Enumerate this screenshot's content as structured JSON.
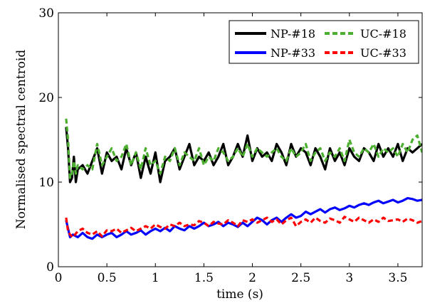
{
  "chart_data": {
    "type": "line",
    "title": "",
    "xlabel": "time (s)",
    "ylabel": "Normalised spectral centroid",
    "xlim": [
      0,
      3.75
    ],
    "ylim": [
      0,
      30
    ],
    "x_ticks": [
      0,
      0.5,
      1,
      1.5,
      2,
      2.5,
      3,
      3.5
    ],
    "x_tick_labels": [
      "0",
      "0.5",
      "1",
      "1.5",
      "2",
      "2.5",
      "3",
      "3.5"
    ],
    "y_ticks": [
      0,
      10,
      20,
      30
    ],
    "y_tick_labels": [
      "0",
      "10",
      "20",
      "30"
    ],
    "grid": false,
    "legend_position": "top-right",
    "legend_columns": 2,
    "series": [
      {
        "name": "NP-#18",
        "color": "#000000",
        "style": "solid",
        "x": [
          0.08,
          0.1,
          0.12,
          0.14,
          0.16,
          0.18,
          0.2,
          0.25,
          0.3,
          0.35,
          0.4,
          0.45,
          0.5,
          0.55,
          0.6,
          0.65,
          0.7,
          0.75,
          0.8,
          0.85,
          0.9,
          0.95,
          1.0,
          1.05,
          1.1,
          1.15,
          1.2,
          1.25,
          1.3,
          1.35,
          1.4,
          1.45,
          1.5,
          1.55,
          1.6,
          1.65,
          1.7,
          1.75,
          1.8,
          1.85,
          1.9,
          1.95,
          2.0,
          2.05,
          2.1,
          2.15,
          2.2,
          2.25,
          2.3,
          2.35,
          2.4,
          2.45,
          2.5,
          2.55,
          2.6,
          2.65,
          2.7,
          2.75,
          2.8,
          2.85,
          2.9,
          2.95,
          3.0,
          3.05,
          3.1,
          3.15,
          3.2,
          3.25,
          3.3,
          3.35,
          3.4,
          3.45,
          3.5,
          3.55,
          3.6,
          3.65,
          3.7,
          3.75
        ],
        "y": [
          16.5,
          14,
          10,
          10.5,
          13,
          10,
          11.5,
          12,
          11,
          12.5,
          14,
          11,
          13.5,
          12.5,
          13,
          11.5,
          14,
          12,
          13.5,
          10.5,
          13,
          11,
          13.5,
          10,
          12.5,
          13,
          14,
          11.5,
          13,
          14.5,
          12,
          13,
          12.5,
          13.5,
          12,
          13,
          14.5,
          12,
          13,
          14.5,
          13,
          15.5,
          12.5,
          14,
          13,
          13.5,
          12.5,
          14.5,
          13.5,
          12,
          14.5,
          13,
          14,
          13.5,
          12,
          14,
          13,
          11.5,
          14,
          12.5,
          13.5,
          12,
          14,
          13,
          12.5,
          14,
          13.5,
          12.5,
          14.5,
          13,
          14,
          13,
          14.5,
          12.5,
          14,
          13.5,
          14,
          14.5
        ]
      },
      {
        "name": "UC-#18",
        "color": "#4daf2f",
        "style": "dashed",
        "x": [
          0.08,
          0.1,
          0.12,
          0.14,
          0.16,
          0.18,
          0.2,
          0.25,
          0.3,
          0.35,
          0.4,
          0.45,
          0.5,
          0.55,
          0.6,
          0.65,
          0.7,
          0.75,
          0.8,
          0.85,
          0.9,
          0.95,
          1.0,
          1.05,
          1.1,
          1.15,
          1.2,
          1.25,
          1.3,
          1.35,
          1.4,
          1.45,
          1.5,
          1.55,
          1.6,
          1.65,
          1.7,
          1.75,
          1.8,
          1.85,
          1.9,
          1.95,
          2.0,
          2.05,
          2.1,
          2.15,
          2.2,
          2.25,
          2.3,
          2.35,
          2.4,
          2.45,
          2.5,
          2.55,
          2.6,
          2.65,
          2.7,
          2.75,
          2.8,
          2.85,
          2.9,
          2.95,
          3.0,
          3.05,
          3.1,
          3.15,
          3.2,
          3.25,
          3.3,
          3.35,
          3.4,
          3.45,
          3.5,
          3.55,
          3.6,
          3.65,
          3.7,
          3.75
        ],
        "y": [
          17.5,
          15,
          10.5,
          11,
          12.5,
          11,
          12,
          11.5,
          12,
          11.5,
          14.5,
          12,
          13,
          14,
          12.5,
          13,
          14.5,
          12,
          13.5,
          11.5,
          14,
          12,
          12.5,
          11,
          13,
          12.5,
          14,
          12,
          13.5,
          13,
          12.5,
          14,
          12,
          13,
          12.5,
          14,
          13.5,
          12.5,
          13,
          14,
          13,
          14.5,
          13,
          14,
          13.5,
          13,
          13.5,
          14,
          13,
          12.5,
          14,
          13,
          13.5,
          14.5,
          12.5,
          13.5,
          14,
          12.5,
          13.5,
          13,
          14,
          12.5,
          15,
          13.5,
          13,
          14,
          13.5,
          14.5,
          13,
          14,
          13.5,
          14,
          13,
          14.5,
          13.5,
          15,
          15.5,
          13.5
        ]
      },
      {
        "name": "NP-#33",
        "color": "#0000ff",
        "style": "solid",
        "x": [
          0.08,
          0.1,
          0.12,
          0.15,
          0.2,
          0.25,
          0.3,
          0.35,
          0.4,
          0.45,
          0.5,
          0.55,
          0.6,
          0.65,
          0.7,
          0.75,
          0.8,
          0.85,
          0.9,
          0.95,
          1.0,
          1.05,
          1.1,
          1.15,
          1.2,
          1.25,
          1.3,
          1.35,
          1.4,
          1.45,
          1.5,
          1.55,
          1.6,
          1.65,
          1.7,
          1.75,
          1.8,
          1.85,
          1.9,
          1.95,
          2.0,
          2.05,
          2.1,
          2.15,
          2.2,
          2.25,
          2.3,
          2.35,
          2.4,
          2.45,
          2.5,
          2.55,
          2.6,
          2.65,
          2.7,
          2.75,
          2.8,
          2.85,
          2.9,
          2.95,
          3.0,
          3.05,
          3.1,
          3.15,
          3.2,
          3.25,
          3.3,
          3.35,
          3.4,
          3.45,
          3.5,
          3.55,
          3.6,
          3.65,
          3.7,
          3.75
        ],
        "y": [
          5.5,
          4.5,
          3.5,
          3.8,
          3.5,
          4,
          3.5,
          3.3,
          3.8,
          3.5,
          3.8,
          4,
          3.5,
          3.8,
          4.2,
          3.8,
          4,
          4.3,
          3.8,
          4.2,
          4.5,
          4.2,
          4.6,
          4.2,
          4.8,
          4.5,
          4.3,
          4.8,
          4.5,
          4.8,
          5.2,
          4.8,
          5,
          5.3,
          4.8,
          5.2,
          5,
          4.7,
          5.2,
          4.8,
          5.3,
          5.8,
          5.5,
          5,
          5.5,
          5.8,
          5.3,
          5.8,
          6.2,
          5.8,
          6,
          6.5,
          6.2,
          6.5,
          6.8,
          6.4,
          6.8,
          7,
          6.7,
          6.9,
          7.2,
          7,
          7.3,
          7.5,
          7.3,
          7.6,
          7.8,
          7.5,
          7.7,
          7.9,
          7.6,
          7.8,
          8.1,
          8,
          7.8,
          7.9
        ]
      },
      {
        "name": "UC-#33",
        "color": "#ff0000",
        "style": "dashed",
        "x": [
          0.08,
          0.1,
          0.12,
          0.15,
          0.2,
          0.25,
          0.3,
          0.35,
          0.4,
          0.45,
          0.5,
          0.55,
          0.6,
          0.65,
          0.7,
          0.75,
          0.8,
          0.85,
          0.9,
          0.95,
          1.0,
          1.05,
          1.1,
          1.15,
          1.2,
          1.25,
          1.3,
          1.35,
          1.4,
          1.45,
          1.5,
          1.55,
          1.6,
          1.65,
          1.7,
          1.75,
          1.8,
          1.85,
          1.9,
          1.95,
          2.0,
          2.05,
          2.1,
          2.15,
          2.2,
          2.25,
          2.3,
          2.35,
          2.4,
          2.45,
          2.5,
          2.55,
          2.6,
          2.65,
          2.7,
          2.75,
          2.8,
          2.85,
          2.9,
          2.95,
          3.0,
          3.05,
          3.1,
          3.15,
          3.2,
          3.25,
          3.3,
          3.35,
          3.4,
          3.45,
          3.5,
          3.55,
          3.6,
          3.65,
          3.7,
          3.75
        ],
        "y": [
          5.8,
          4.2,
          3.8,
          3.5,
          4.2,
          4.5,
          4,
          3.8,
          4.2,
          3.6,
          4.3,
          4.2,
          4.5,
          4,
          4.3,
          4.6,
          4.2,
          4.5,
          4.8,
          4.5,
          5,
          4.7,
          4.5,
          5,
          4.8,
          5.2,
          4.8,
          5,
          4.9,
          5.4,
          5.2,
          4.8,
          5.3,
          5.1,
          5,
          5.5,
          5.2,
          4.8,
          5.5,
          5.3,
          5.6,
          5.2,
          5.5,
          5.8,
          5.3,
          5.6,
          5,
          5.5,
          5.8,
          4.8,
          5.3,
          5.6,
          5.2,
          5.8,
          5.4,
          5.2,
          5.7,
          5.5,
          5.2,
          5.9,
          5.6,
          5.3,
          5.8,
          5.5,
          5.2,
          5.6,
          5.3,
          5.8,
          5.4,
          5.5,
          5.6,
          5.3,
          5.7,
          5.5,
          5.2,
          5.4
        ]
      }
    ]
  }
}
